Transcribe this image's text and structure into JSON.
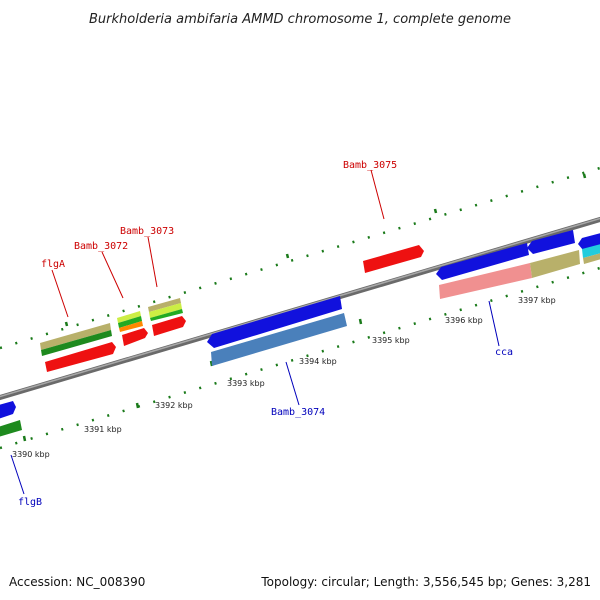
{
  "title": "Burkholderia ambifaria AMMD chromosome 1, complete genome",
  "footer": {
    "accession": "Accession: NC_008390",
    "summary": "Topology: circular; Length: 3,556,545 bp; Genes: 3,281"
  },
  "ticks": [
    {
      "label": "3390 kbp"
    },
    {
      "label": "3391 kbp"
    },
    {
      "label": "3392 kbp"
    },
    {
      "label": "3393 kbp"
    },
    {
      "label": "3394 kbp"
    },
    {
      "label": "3395 kbp"
    },
    {
      "label": "3396 kbp"
    },
    {
      "label": "3397 kbp"
    }
  ],
  "gene_labels": [
    {
      "name": "flgA",
      "strand": "top"
    },
    {
      "name": "Bamb_3072",
      "strand": "top"
    },
    {
      "name": "Bamb_3073",
      "strand": "top"
    },
    {
      "name": "Bamb_3075",
      "strand": "top"
    },
    {
      "name": "Bamb_3074",
      "strand": "bottom"
    },
    {
      "name": "cca",
      "strand": "bottom"
    },
    {
      "name": "flgB",
      "strand": "bottom"
    }
  ],
  "colors": {
    "backbone": "#8a8a8a",
    "forward_cds": "#ee1111",
    "reverse_cds": "#1111dd",
    "top_label": "#cc0000",
    "bottom_label": "#0000bb",
    "tick_marks": "#1a7a1a"
  }
}
